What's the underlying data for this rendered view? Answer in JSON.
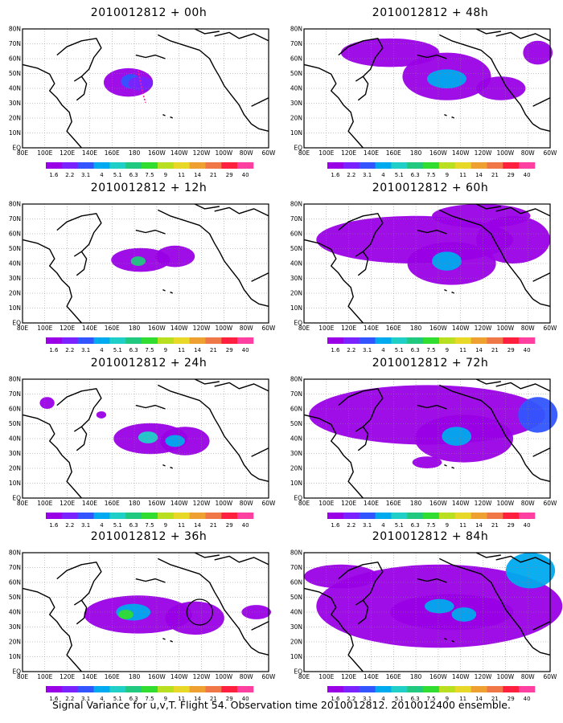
{
  "palette_hex": [
    "#9a00e6",
    "#7a22ff",
    "#3355ff",
    "#00aaee",
    "#20d0c8",
    "#20c880",
    "#30dd30",
    "#b8e020",
    "#e8d828",
    "#eea030",
    "#f07848",
    "#ff2040",
    "#ff40a0"
  ],
  "colorbar_labels": [
    "1.6",
    "2.2",
    "3.1",
    "4",
    "5.1",
    "6.3",
    "7.5",
    "9",
    "11",
    "14",
    "21",
    "29",
    "40"
  ],
  "lat_labels": [
    "EQ",
    "10N",
    "20N",
    "30N",
    "40N",
    "50N",
    "60N",
    "70N",
    "80N"
  ],
  "lon_labels": [
    "80E",
    "100E",
    "120E",
    "140E",
    "160E",
    "180",
    "160W",
    "140W",
    "120W",
    "100W",
    "80W",
    "60W"
  ],
  "panels": [
    {
      "title": "2010012812 + 00h",
      "circle": false
    },
    {
      "title": "2010012812 + 12h",
      "circle": false
    },
    {
      "title": "2010012812 + 24h",
      "circle": false
    },
    {
      "title": "2010012812 + 36h",
      "circle": true
    },
    {
      "title": "2010012812 + 48h",
      "circle": false
    },
    {
      "title": "2010012812 + 60h",
      "circle": false
    },
    {
      "title": "2010012812 + 72h",
      "circle": false
    },
    {
      "title": "2010012812 + 84h",
      "circle": false
    }
  ],
  "footer": "Signal Variance for u,v,T. Flight 54. Observation time 2010012812. 2010012400 ensemble."
}
